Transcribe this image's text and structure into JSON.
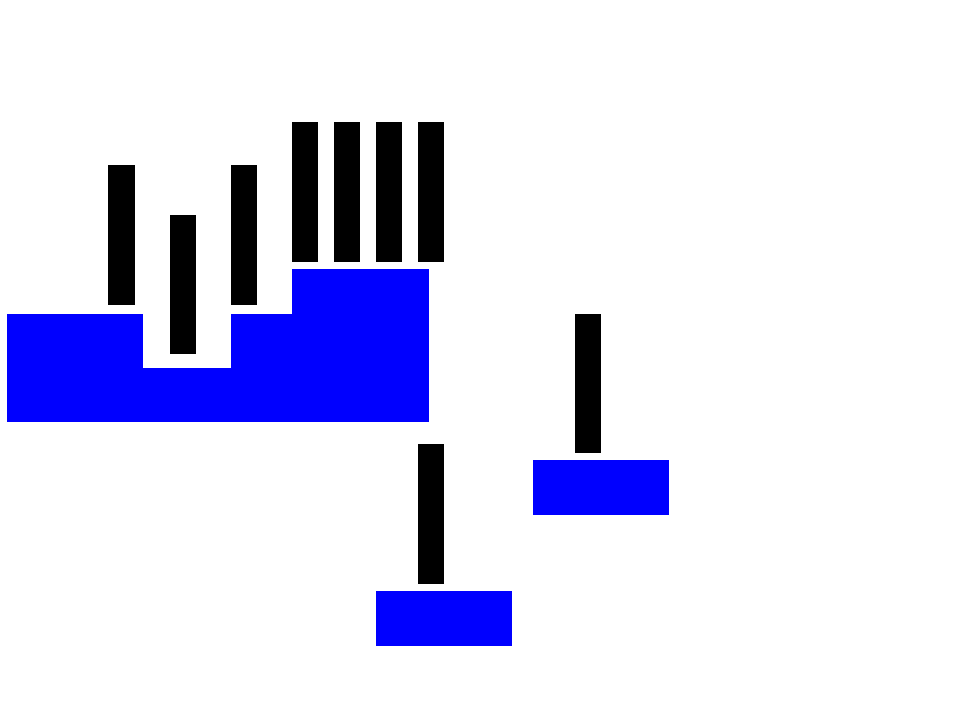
{
  "colors": {
    "background": "#ffffff",
    "block": "#0000ff",
    "bar": "#000000"
  },
  "scene": {
    "terrain_segments": 4,
    "platforms": 2,
    "bars": 9
  }
}
